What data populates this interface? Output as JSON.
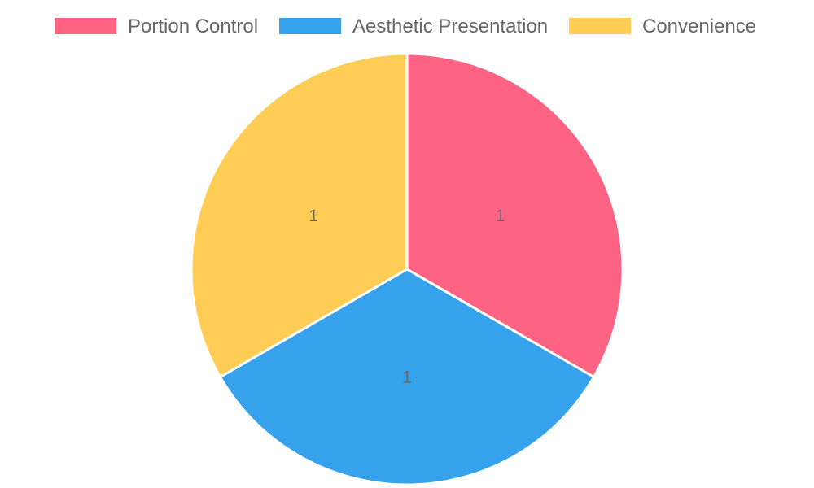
{
  "chart_data": {
    "type": "pie",
    "categories": [
      "Portion Control",
      "Aesthetic Presentation",
      "Convenience"
    ],
    "values": [
      1,
      1,
      1
    ],
    "colors": [
      "#ff6384",
      "#36a2eb",
      "#ffcd56"
    ],
    "data_labels": [
      "1",
      "1",
      "1"
    ],
    "legend_position": "top",
    "title": ""
  }
}
